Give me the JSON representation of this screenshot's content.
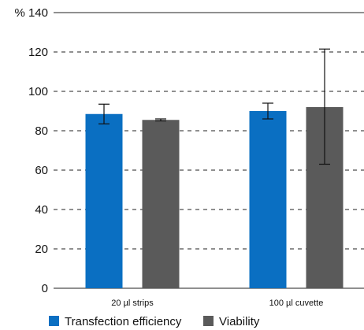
{
  "chart_data": {
    "type": "bar",
    "categories": [
      "20 µl strips",
      "100 µl cuvette"
    ],
    "series": [
      {
        "name": "Transfection efficiency",
        "color": "#0a6fc2",
        "values": [
          88.5,
          90
        ],
        "error_low": [
          83.5,
          86
        ],
        "error_high": [
          93.5,
          94
        ]
      },
      {
        "name": "Viability",
        "color": "#5a5a5a",
        "values": [
          85.5,
          92
        ],
        "error_low": [
          85,
          63
        ],
        "error_high": [
          86,
          121.5
        ]
      }
    ],
    "yunit": "%",
    "yticks": [
      0,
      20,
      40,
      60,
      80,
      100,
      120,
      140
    ],
    "ylim": [
      0,
      140
    ],
    "grid": "dashed horizontal",
    "legend_position": "bottom"
  }
}
